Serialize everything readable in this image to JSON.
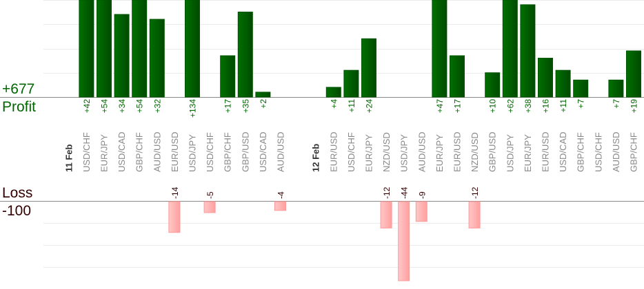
{
  "colors": {
    "profit": "#006600",
    "profit_dark": "#004d00",
    "loss": "#ffaaaa",
    "loss_text": "#330000",
    "pair_text": "#888888"
  },
  "chart_data": {
    "type": "bar",
    "title": "",
    "profit_total_label": "+677",
    "profit_label": "Profit",
    "loss_label": "Loss",
    "loss_total_label": "-100",
    "grid": true,
    "columns": [
      {
        "date": "11 Feb"
      },
      {
        "pair": "USD/CHF",
        "value": 42,
        "label": "+42"
      },
      {
        "pair": "EUR/JPY",
        "value": 54,
        "label": "+54"
      },
      {
        "pair": "USD/CAD",
        "value": 34,
        "label": "+34"
      },
      {
        "pair": "GBP/CHF",
        "value": 54,
        "label": "+54"
      },
      {
        "pair": "AUD/USD",
        "value": 32,
        "label": "+32"
      },
      {
        "pair": "EUR/USD",
        "value": -14,
        "label": "-14"
      },
      {
        "pair": "USD/JPY",
        "value": 134,
        "label": "+134"
      },
      {
        "pair": "USD/CHF",
        "value": -5,
        "label": "-5"
      },
      {
        "pair": "GBP/CHF",
        "value": 17,
        "label": "+17"
      },
      {
        "pair": "GBP/USD",
        "value": 35,
        "label": "+35"
      },
      {
        "pair": "USD/CAD",
        "value": 2,
        "label": "+2"
      },
      {
        "pair": "AUD/USD",
        "value": -4,
        "label": "-4"
      },
      {},
      {
        "date": "12 Feb"
      },
      {
        "pair": "EUR/USD",
        "value": 4,
        "label": "+4"
      },
      {
        "pair": "USD/CHF",
        "value": 11,
        "label": "+11"
      },
      {
        "pair": "EUR/JPY",
        "value": 24,
        "label": "+24"
      },
      {
        "pair": "NZD/USD",
        "value": -12,
        "label": "-12"
      },
      {
        "pair": "USD/JPY",
        "value": -44,
        "label": "-44"
      },
      {
        "pair": "AUD/USD",
        "value": -9,
        "label": "-9"
      },
      {
        "pair": "EUR/JPY",
        "value": 47,
        "label": "+47"
      },
      {
        "pair": "EUR/USD",
        "value": 17,
        "label": "+17"
      },
      {
        "pair": "NZD/USD",
        "value": -12,
        "label": "-12"
      },
      {
        "pair": "GBP/USD",
        "value": 10,
        "label": "+10"
      },
      {
        "pair": "USD/JPY",
        "value": 62,
        "label": "+62"
      },
      {
        "pair": "EUR/JPY",
        "value": 38,
        "label": "+38"
      },
      {
        "pair": "EUR/USD",
        "value": 16,
        "label": "+16"
      },
      {
        "pair": "USD/CAD",
        "value": 11,
        "label": "+11"
      },
      {
        "pair": "GBP/CHF",
        "value": 7,
        "label": "+7"
      },
      {
        "pair": "USD/CHF"
      },
      {
        "pair": "AUD/USD",
        "value": 7,
        "label": "+7"
      },
      {
        "pair": "GBP/CHF",
        "value": 19,
        "label": "+19"
      }
    ]
  }
}
